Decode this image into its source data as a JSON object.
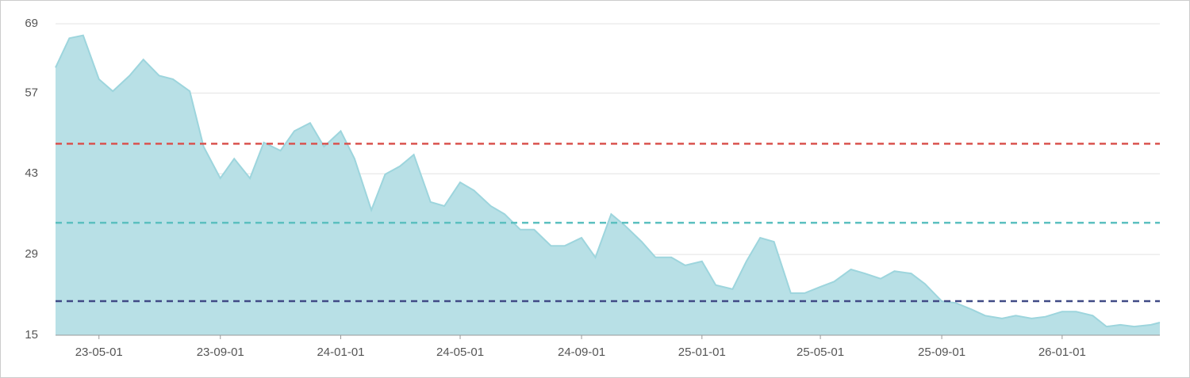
{
  "chart_data": {
    "type": "area",
    "x": [
      "23-03-18",
      "23-04-01",
      "23-04-15",
      "23-05-01",
      "23-05-15",
      "23-06-01",
      "23-06-15",
      "23-07-01",
      "23-07-15",
      "23-08-01",
      "23-08-15",
      "23-09-01",
      "23-09-15",
      "23-10-01",
      "23-10-15",
      "23-11-01",
      "23-11-15",
      "23-12-01",
      "23-12-15",
      "24-01-01",
      "24-01-15",
      "24-02-01",
      "24-02-15",
      "24-03-01",
      "24-03-15",
      "24-04-01",
      "24-04-15",
      "24-05-01",
      "24-05-15",
      "24-06-01",
      "24-06-15",
      "24-07-01",
      "24-07-15",
      "24-08-01",
      "24-08-15",
      "24-09-01",
      "24-09-15",
      "24-10-01",
      "24-10-15",
      "24-11-01",
      "24-11-15",
      "24-12-01",
      "24-12-15",
      "25-01-01",
      "25-01-15",
      "25-02-01",
      "25-02-15",
      "25-03-01",
      "25-03-15",
      "25-04-01",
      "25-04-15",
      "25-05-01",
      "25-05-15",
      "25-06-01",
      "25-06-15",
      "25-07-01",
      "25-07-15",
      "25-08-01",
      "25-08-15",
      "25-09-01",
      "25-09-15",
      "25-10-01",
      "25-10-15",
      "25-11-01",
      "25-11-15",
      "25-12-01",
      "25-12-15",
      "26-01-01",
      "26-01-15",
      "26-02-01",
      "26-02-15",
      "26-03-01",
      "26-03-15",
      "26-04-01",
      "26-04-10"
    ],
    "series": [
      {
        "color": "#9dd5dd",
        "fill": "#b8e0e6",
        "values": [
          61.4,
          66.5,
          67,
          59.4,
          57.3,
          60,
          62.8,
          60,
          59.4,
          57.3,
          47.7,
          42.2,
          45.6,
          42.2,
          48.4,
          47,
          50.4,
          51.8,
          47.7,
          50.4,
          45.6,
          36.7,
          42.9,
          44.3,
          46.3,
          38.1,
          37.4,
          41.5,
          40.1,
          37.4,
          36,
          33.3,
          33.3,
          30.5,
          30.5,
          31.9,
          28.5,
          36,
          34,
          31.2,
          28.5,
          28.5,
          27.1,
          27.8,
          23.7,
          23,
          27.8,
          31.9,
          31.2,
          22.3,
          22.3,
          23.4,
          24.3,
          26.4,
          25.7,
          24.8,
          26.1,
          25.7,
          23.9,
          20.9,
          20.6,
          19.5,
          18.4,
          17.9,
          18.4,
          17.9,
          18.2,
          19.1,
          19.1,
          18.4,
          16.5,
          16.8,
          16.5,
          16.8,
          17.2
        ]
      }
    ],
    "xlim": [
      "23-03-18",
      "26-04-10"
    ],
    "xticks": [
      "23-05-01",
      "23-09-01",
      "24-01-01",
      "24-05-01",
      "24-09-01",
      "25-01-01",
      "25-05-01",
      "25-09-01",
      "26-01-01"
    ],
    "ylim": [
      15,
      69
    ],
    "yticks": [
      15,
      29,
      43,
      57,
      69
    ],
    "grid": true,
    "reference_lines": [
      {
        "value": 48.2,
        "color": "#d9534f"
      },
      {
        "value": 34.5,
        "color": "#5bbfbf"
      },
      {
        "value": 20.9,
        "color": "#404a85"
      }
    ]
  }
}
